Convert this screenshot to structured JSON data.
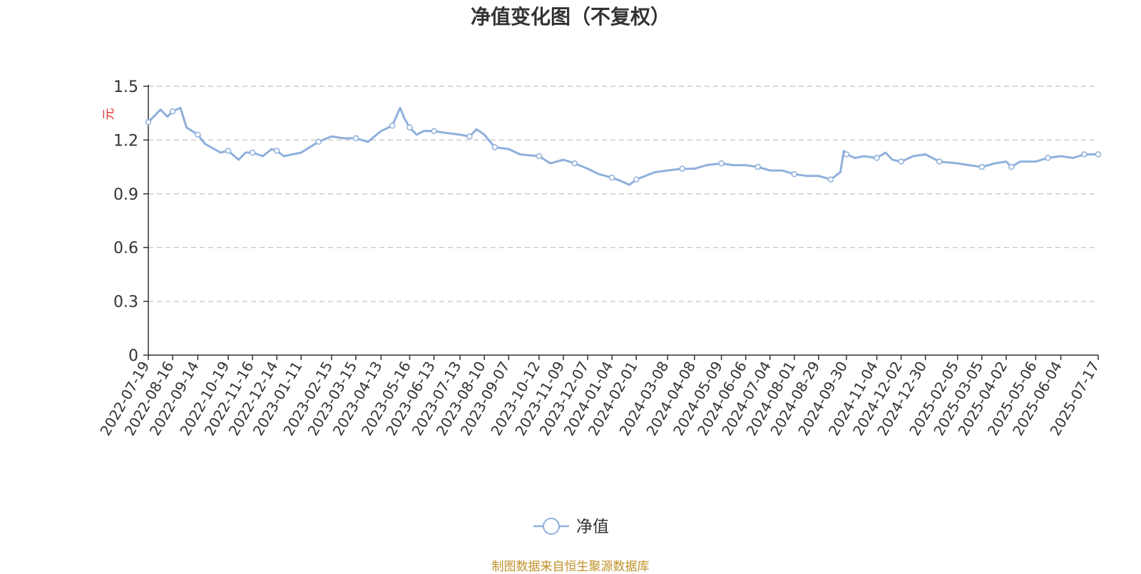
{
  "chart_data": {
    "type": "line",
    "title": "净值变化图（不复权）",
    "ylabel": "元",
    "ylim": [
      0,
      1.5
    ],
    "yticks": [
      "0",
      "0.3",
      "0.6",
      "0.9",
      "1.2",
      "1.5"
    ],
    "xtick_labels": [
      "2022-07-19",
      "2022-08-16",
      "2022-09-14",
      "2022-10-19",
      "2022-11-16",
      "2022-12-14",
      "2023-01-11",
      "2023-02-15",
      "2023-03-15",
      "2023-04-13",
      "2023-05-16",
      "2023-06-13",
      "2023-07-13",
      "2023-08-10",
      "2023-09-07",
      "2023-10-12",
      "2023-11-09",
      "2023-12-07",
      "2024-01-04",
      "2024-02-01",
      "2024-03-08",
      "2024-04-08",
      "2024-05-09",
      "2024-06-06",
      "2024-07-04",
      "2024-08-01",
      "2024-08-29",
      "2024-09-30",
      "2024-11-04",
      "2024-12-02",
      "2024-12-30",
      "2025-02-05",
      "2025-03-05",
      "2025-04-02",
      "2025-05-06",
      "2025-06-04",
      "2025-07-17"
    ],
    "grid": "horizontal-dashed",
    "legend": "bottom-center",
    "series": [
      {
        "name": "净值",
        "color": "#8fb0dc",
        "x": [
          "2022-07-19",
          "2022-08-02",
          "2022-08-10",
          "2022-08-16",
          "2022-08-25",
          "2022-09-01",
          "2022-09-14",
          "2022-09-22",
          "2022-10-10",
          "2022-10-19",
          "2022-10-31",
          "2022-11-08",
          "2022-11-16",
          "2022-11-28",
          "2022-12-08",
          "2022-12-14",
          "2022-12-22",
          "2023-01-11",
          "2023-01-31",
          "2023-02-15",
          "2023-03-01",
          "2023-03-15",
          "2023-03-29",
          "2023-04-13",
          "2023-04-26",
          "2023-05-05",
          "2023-05-10",
          "2023-05-16",
          "2023-05-24",
          "2023-06-01",
          "2023-06-13",
          "2023-06-26",
          "2023-07-13",
          "2023-07-24",
          "2023-08-01",
          "2023-08-10",
          "2023-08-22",
          "2023-09-07",
          "2023-09-20",
          "2023-10-12",
          "2023-10-25",
          "2023-11-09",
          "2023-11-22",
          "2023-12-07",
          "2023-12-20",
          "2024-01-04",
          "2024-01-15",
          "2024-01-24",
          "2024-02-01",
          "2024-02-22",
          "2024-03-08",
          "2024-03-25",
          "2024-04-08",
          "2024-04-22",
          "2024-05-09",
          "2024-05-22",
          "2024-06-06",
          "2024-06-20",
          "2024-07-04",
          "2024-07-18",
          "2024-08-01",
          "2024-08-15",
          "2024-08-29",
          "2024-09-12",
          "2024-09-23",
          "2024-09-27",
          "2024-09-30",
          "2024-10-10",
          "2024-10-20",
          "2024-11-04",
          "2024-11-14",
          "2024-11-22",
          "2024-12-02",
          "2024-12-16",
          "2024-12-30",
          "2025-01-15",
          "2025-02-05",
          "2025-02-18",
          "2025-03-05",
          "2025-03-20",
          "2025-04-02",
          "2025-04-08",
          "2025-04-18",
          "2025-05-06",
          "2025-05-20",
          "2025-06-04",
          "2025-06-18",
          "2025-07-01",
          "2025-07-17"
        ],
        "values": [
          1.3,
          1.37,
          1.33,
          1.36,
          1.38,
          1.27,
          1.23,
          1.18,
          1.13,
          1.14,
          1.09,
          1.13,
          1.13,
          1.11,
          1.15,
          1.14,
          1.11,
          1.13,
          1.19,
          1.22,
          1.21,
          1.21,
          1.19,
          1.25,
          1.28,
          1.38,
          1.32,
          1.27,
          1.23,
          1.25,
          1.25,
          1.24,
          1.23,
          1.22,
          1.26,
          1.23,
          1.16,
          1.15,
          1.12,
          1.11,
          1.07,
          1.09,
          1.07,
          1.04,
          1.01,
          0.99,
          0.97,
          0.95,
          0.98,
          1.02,
          1.03,
          1.04,
          1.04,
          1.06,
          1.07,
          1.06,
          1.06,
          1.05,
          1.03,
          1.03,
          1.01,
          1.0,
          1.0,
          0.98,
          1.02,
          1.14,
          1.12,
          1.1,
          1.11,
          1.1,
          1.13,
          1.09,
          1.08,
          1.11,
          1.12,
          1.08,
          1.07,
          1.06,
          1.05,
          1.07,
          1.08,
          1.05,
          1.08,
          1.08,
          1.1,
          1.11,
          1.1,
          1.12,
          1.12
        ]
      }
    ],
    "source_note": "制图数据来自恒生聚源数据库"
  }
}
